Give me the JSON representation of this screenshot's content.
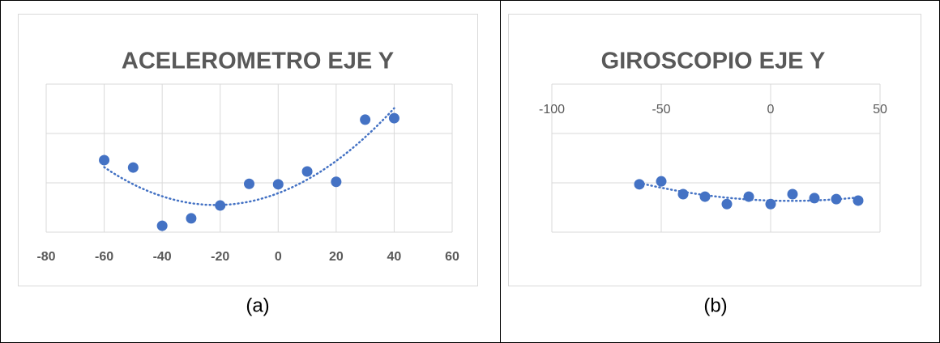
{
  "chart_data": [
    {
      "type": "scatter",
      "title": "ACELEROMETRO  EJE Y",
      "caption": "(a)",
      "x": [
        -60,
        -50,
        -40,
        -30,
        -20,
        -10,
        0,
        10,
        20,
        30,
        40
      ],
      "values": [
        1.46,
        1.31,
        0.13,
        0.28,
        0.54,
        0.98,
        0.97,
        1.23,
        1.02,
        2.28,
        2.31
      ],
      "color": "#4472c4",
      "trendline": "polynomial",
      "grid": true,
      "xlim": [
        -80,
        60
      ],
      "xticks": [
        -80,
        -60,
        -40,
        -20,
        0,
        20,
        40,
        60
      ],
      "ylim": [
        0,
        3
      ],
      "yticks": [
        0,
        1,
        2,
        3
      ]
    },
    {
      "type": "scatter",
      "title": "GIROSCOPIO EJE Y",
      "caption": "(b)",
      "x": [
        -60,
        -50,
        -40,
        -30,
        -20,
        -10,
        0,
        10,
        20,
        30,
        40
      ],
      "values": [
        -2.03,
        -1.97,
        -2.23,
        -2.28,
        -2.43,
        -2.28,
        -2.43,
        -2.23,
        -2.31,
        -2.33,
        -2.36
      ],
      "color": "#4472c4",
      "trendline": "polynomial",
      "grid": true,
      "xlim": [
        -100,
        50
      ],
      "xticks": [
        -100,
        -50,
        0,
        50
      ],
      "ylim": [
        -3,
        0
      ],
      "yticks": [
        -3,
        -2,
        -1,
        0
      ]
    }
  ]
}
